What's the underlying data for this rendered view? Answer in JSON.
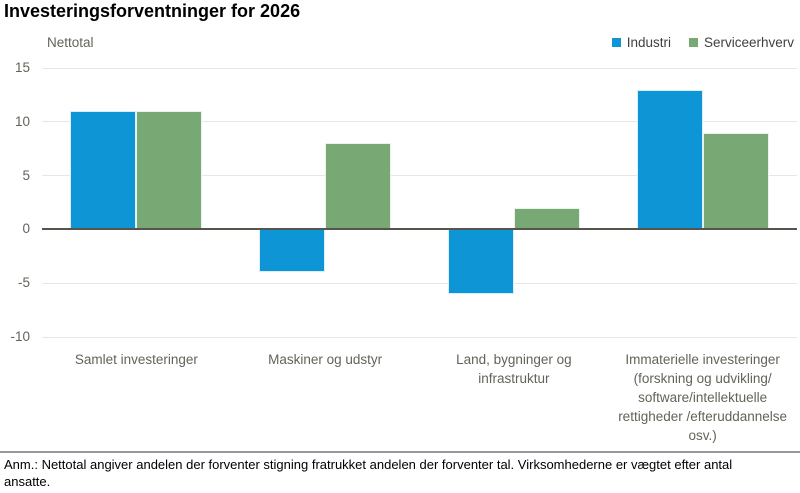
{
  "footer": {
    "note": "Anm.: Nettotal angiver andelen der forventer stigning fratrukket andelen der forventer tal. Virksomhederne er vægtet efter antal ansatte."
  },
  "chart_data": {
    "type": "bar",
    "title": "Investeringsforventninger for 2026",
    "ylabel": "Nettotal",
    "xlabel": "",
    "categories": [
      "Samlet investeringer",
      "Maskiner og udstyr",
      "Land, bygninger og\ninfrastruktur",
      "Immaterielle investeringer\n(forskning og udvikling/\nsoftware/intellektuelle\nrettigheder /efteruddannelse\nosv.)"
    ],
    "series": [
      {
        "name": "Industri",
        "color": "#0d95d5",
        "values": [
          11,
          -4,
          -6,
          13
        ]
      },
      {
        "name": "Serviceerhverv",
        "color": "#78a873",
        "values": [
          11,
          8,
          2,
          9
        ]
      }
    ],
    "yticks": [
      15,
      10,
      5,
      0,
      -5,
      -10
    ],
    "ylim": [
      -10,
      15
    ],
    "grid": true,
    "legend_position": "top-right",
    "colors": {
      "grid": "#e6e6e6",
      "zero_axis": "#55554d",
      "axis_text": "#63635a",
      "divider": "#97979f"
    }
  }
}
